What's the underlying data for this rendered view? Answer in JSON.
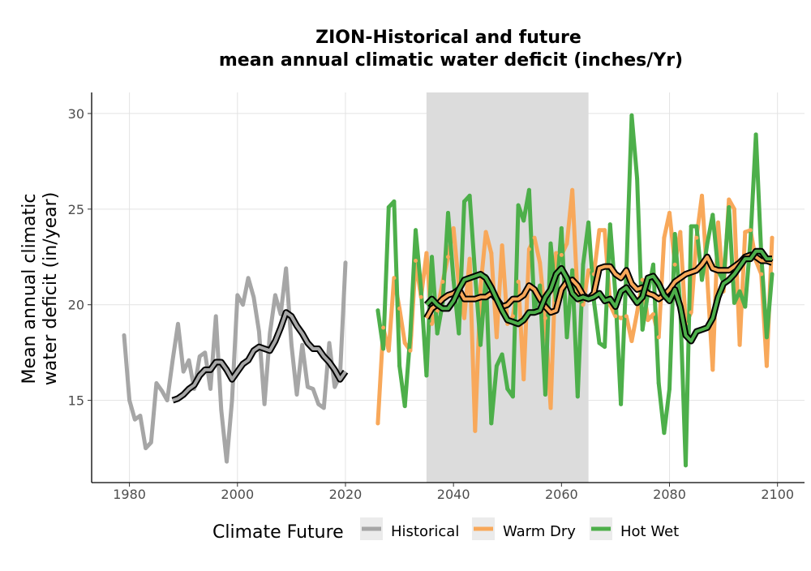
{
  "chart_data": {
    "type": "line",
    "title_line1": "ZION-Historical and future",
    "title_line2": "mean annual climatic water deficit (inches/Yr)",
    "ylabel_line1": "Mean annual climatic",
    "ylabel_line2": "water deficit (in/year)",
    "xlim": [
      1973,
      2105
    ],
    "ylim": [
      10.7,
      31.1
    ],
    "x_ticks": [
      1980,
      2000,
      2020,
      2040,
      2060,
      2080,
      2100
    ],
    "y_ticks": [
      15,
      20,
      25,
      30
    ],
    "shaded_period": [
      2035,
      2065
    ],
    "legend_title": "Climate Future",
    "legend_position": "bottom",
    "grid": true,
    "series": [
      {
        "name": "Historical",
        "color": "#A6A6A6",
        "x": [
          1979,
          1980,
          1981,
          1982,
          1983,
          1984,
          1985,
          1986,
          1987,
          1988,
          1989,
          1990,
          1991,
          1992,
          1993,
          1994,
          1995,
          1996,
          1997,
          1998,
          1999,
          2000,
          2001,
          2002,
          2003,
          2004,
          2005,
          2006,
          2007,
          2008,
          2009,
          2010,
          2011,
          2012,
          2013,
          2014,
          2015,
          2016,
          2017,
          2018,
          2019,
          2020
        ],
        "values": [
          18.4,
          15.0,
          14.0,
          14.2,
          12.5,
          12.8,
          15.9,
          15.5,
          15.0,
          17.1,
          19.0,
          16.5,
          17.1,
          15.6,
          17.3,
          17.5,
          15.6,
          19.4,
          14.5,
          11.8,
          15.0,
          20.5,
          20.0,
          21.4,
          20.4,
          18.6,
          14.8,
          18.5,
          20.5,
          19.5,
          21.9,
          17.9,
          15.3,
          17.9,
          15.7,
          15.6,
          14.8,
          14.6,
          18.0,
          15.7,
          16.3,
          22.2
        ],
        "smooth_x": [
          1988,
          1989,
          1990,
          1991,
          1992,
          1993,
          1994,
          1995,
          1996,
          1997,
          1998,
          1999,
          2000,
          2001,
          2002,
          2003,
          2004,
          2005,
          2006,
          2007,
          2008,
          2009,
          2010,
          2011,
          2012,
          2013,
          2014,
          2015,
          2016,
          2017,
          2018,
          2019,
          2020
        ],
        "smooth": [
          15.0,
          15.1,
          15.3,
          15.6,
          15.8,
          16.3,
          16.6,
          16.6,
          17.0,
          17.0,
          16.6,
          16.1,
          16.5,
          16.9,
          17.1,
          17.6,
          17.8,
          17.7,
          17.6,
          18.1,
          18.8,
          19.6,
          19.4,
          18.9,
          18.5,
          18.0,
          17.7,
          17.7,
          17.3,
          17.0,
          16.6,
          16.1,
          16.5
        ]
      },
      {
        "name": "Warm Dry",
        "color": "#F8A85A",
        "x": [
          2026,
          2027,
          2028,
          2029,
          2030,
          2031,
          2032,
          2033,
          2034,
          2035,
          2036,
          2037,
          2038,
          2039,
          2040,
          2041,
          2042,
          2043,
          2044,
          2045,
          2046,
          2047,
          2048,
          2049,
          2050,
          2051,
          2052,
          2053,
          2054,
          2055,
          2056,
          2057,
          2058,
          2059,
          2060,
          2061,
          2062,
          2063,
          2064,
          2065,
          2066,
          2067,
          2068,
          2069,
          2070,
          2071,
          2072,
          2073,
          2074,
          2075,
          2076,
          2077,
          2078,
          2079,
          2080,
          2081,
          2082,
          2083,
          2084,
          2085,
          2086,
          2087,
          2088,
          2089,
          2090,
          2091,
          2092,
          2093,
          2094,
          2095,
          2096,
          2097,
          2098,
          2099
        ],
        "values": [
          13.8,
          18.8,
          17.6,
          21.4,
          19.8,
          18.0,
          17.6,
          22.3,
          20.4,
          22.7,
          19.0,
          19.7,
          21.2,
          22.5,
          24.0,
          21.0,
          19.3,
          22.4,
          13.4,
          20.9,
          23.8,
          22.7,
          18.3,
          23.1,
          19.0,
          19.4,
          21.2,
          16.1,
          22.9,
          23.5,
          22.2,
          19.3,
          14.6,
          22.7,
          22.6,
          23.2,
          26.0,
          20.3,
          20.0,
          21.8,
          21.6,
          23.9,
          23.9,
          20.0,
          19.4,
          19.3,
          19.4,
          18.1,
          19.6,
          21.3,
          19.2,
          19.5,
          18.3,
          23.5,
          24.8,
          22.1,
          23.8,
          19.0,
          19.6,
          23.5,
          25.7,
          21.4,
          16.6,
          24.3,
          20.7,
          25.5,
          25.0,
          17.9,
          23.8,
          23.9,
          22.3,
          21.6,
          16.8,
          23.5
        ],
        "smooth_x": [
          2035,
          2036,
          2037,
          2038,
          2039,
          2040,
          2041,
          2042,
          2043,
          2044,
          2045,
          2046,
          2047,
          2048,
          2049,
          2050,
          2051,
          2052,
          2053,
          2054,
          2055,
          2056,
          2057,
          2058,
          2059,
          2060,
          2061,
          2062,
          2063,
          2064,
          2065,
          2066,
          2067,
          2068,
          2069,
          2070,
          2071,
          2072,
          2073,
          2074,
          2075,
          2076,
          2077,
          2078,
          2079,
          2080,
          2081,
          2082,
          2083,
          2084,
          2085,
          2086,
          2087,
          2088,
          2089,
          2090,
          2091,
          2092,
          2093,
          2094,
          2095,
          2096,
          2097,
          2098,
          2099
        ],
        "smooth": [
          19.3,
          19.8,
          20.0,
          20.3,
          20.5,
          20.6,
          20.8,
          20.3,
          20.3,
          20.3,
          20.4,
          20.4,
          20.6,
          20.3,
          19.9,
          20.0,
          20.3,
          20.3,
          20.5,
          21.0,
          20.8,
          20.3,
          19.9,
          19.6,
          19.7,
          20.8,
          21.2,
          21.3,
          21.0,
          20.5,
          20.3,
          20.6,
          21.9,
          22.0,
          22.0,
          21.6,
          21.4,
          21.8,
          21.1,
          20.8,
          20.9,
          20.6,
          20.5,
          20.3,
          20.5,
          20.8,
          21.2,
          21.4,
          21.6,
          21.7,
          21.8,
          22.1,
          22.5,
          21.9,
          21.8,
          21.8,
          21.8,
          22.0,
          22.2,
          22.5,
          22.6,
          22.5,
          22.3,
          22.3,
          22.2
        ]
      },
      {
        "name": "Hot Wet",
        "color": "#4DAF4A",
        "x": [
          2026,
          2027,
          2028,
          2029,
          2030,
          2031,
          2032,
          2033,
          2034,
          2035,
          2036,
          2037,
          2038,
          2039,
          2040,
          2041,
          2042,
          2043,
          2044,
          2045,
          2046,
          2047,
          2048,
          2049,
          2050,
          2051,
          2052,
          2053,
          2054,
          2055,
          2056,
          2057,
          2058,
          2059,
          2060,
          2061,
          2062,
          2063,
          2064,
          2065,
          2066,
          2067,
          2068,
          2069,
          2070,
          2071,
          2072,
          2073,
          2074,
          2075,
          2076,
          2077,
          2078,
          2079,
          2080,
          2081,
          2082,
          2083,
          2084,
          2085,
          2086,
          2087,
          2088,
          2089,
          2090,
          2091,
          2092,
          2093,
          2094,
          2095,
          2096,
          2097,
          2098,
          2099
        ],
        "values": [
          19.7,
          17.7,
          25.1,
          25.4,
          16.8,
          14.7,
          18.4,
          23.9,
          20.8,
          16.3,
          22.5,
          18.5,
          20.1,
          24.8,
          21.3,
          18.5,
          25.4,
          25.7,
          21.6,
          17.9,
          21.5,
          13.8,
          16.8,
          17.4,
          15.6,
          15.2,
          25.2,
          24.4,
          26.0,
          19.6,
          21.0,
          15.3,
          23.2,
          20.2,
          24.0,
          18.3,
          21.8,
          15.2,
          22.1,
          24.3,
          20.2,
          18.0,
          17.8,
          24.2,
          20.5,
          14.8,
          21.7,
          29.9,
          26.6,
          18.7,
          20.6,
          22.1,
          15.9,
          13.3,
          15.6,
          23.7,
          19.9,
          11.6,
          24.1,
          24.1,
          21.3,
          23.2,
          24.7,
          21.8,
          21.2,
          25.1,
          20.1,
          20.7,
          19.9,
          23.4,
          28.9,
          22.6,
          18.3,
          21.6
        ],
        "smooth_x": [
          2035,
          2036,
          2037,
          2038,
          2039,
          2040,
          2041,
          2042,
          2043,
          2044,
          2045,
          2046,
          2047,
          2048,
          2049,
          2050,
          2051,
          2052,
          2053,
          2054,
          2055,
          2056,
          2057,
          2058,
          2059,
          2060,
          2061,
          2062,
          2063,
          2064,
          2065,
          2066,
          2067,
          2068,
          2069,
          2070,
          2071,
          2072,
          2073,
          2074,
          2075,
          2076,
          2077,
          2078,
          2079,
          2080,
          2081,
          2082,
          2083,
          2084,
          2085,
          2086,
          2087,
          2088,
          2089,
          2090,
          2091,
          2092,
          2093,
          2094,
          2095,
          2096,
          2097,
          2098,
          2099
        ],
        "smooth": [
          20.0,
          20.3,
          20.0,
          19.8,
          19.8,
          20.2,
          20.8,
          21.3,
          21.4,
          21.5,
          21.6,
          21.4,
          20.9,
          20.3,
          19.7,
          19.2,
          19.1,
          19.0,
          19.2,
          19.6,
          19.6,
          19.7,
          20.4,
          20.8,
          21.6,
          21.9,
          21.4,
          20.6,
          20.3,
          20.4,
          20.3,
          20.4,
          20.6,
          20.2,
          20.3,
          19.9,
          20.7,
          20.9,
          20.5,
          20.1,
          20.4,
          21.4,
          21.5,
          21.1,
          20.5,
          20.2,
          20.8,
          19.9,
          18.4,
          18.1,
          18.6,
          18.7,
          18.8,
          19.3,
          20.4,
          21.1,
          21.3,
          21.6,
          22.0,
          22.4,
          22.4,
          22.8,
          22.8,
          22.4,
          22.4
        ]
      }
    ]
  }
}
